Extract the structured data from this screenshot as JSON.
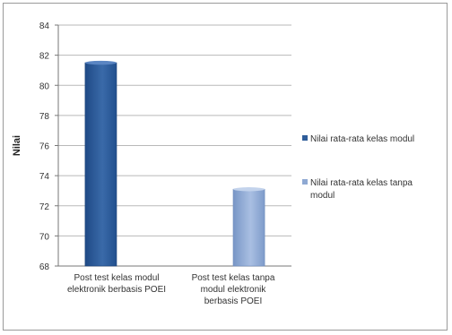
{
  "chart_data": {
    "type": "bar",
    "ylabel": "Nilai",
    "xlabel": "",
    "ylim": [
      68,
      84
    ],
    "yticks": [
      68,
      70,
      72,
      74,
      76,
      78,
      80,
      82,
      84
    ],
    "grid": true,
    "legend_position": "right",
    "categories": [
      [
        "Post test kelas modul",
        "elektronik berbasis POEI"
      ],
      [
        "Post test kelas tanpa",
        "modul elektronik",
        "berbasis POEI"
      ]
    ],
    "series": [
      {
        "name": [
          "Nilai rata-rata kelas modul"
        ],
        "color": "#2f5d9a",
        "values": [
          81.5,
          null
        ]
      },
      {
        "name": [
          "Nilai rata-rata kelas tanpa",
          "modul"
        ],
        "color": "#8fa9d3",
        "values": [
          null,
          73.1
        ]
      }
    ]
  }
}
